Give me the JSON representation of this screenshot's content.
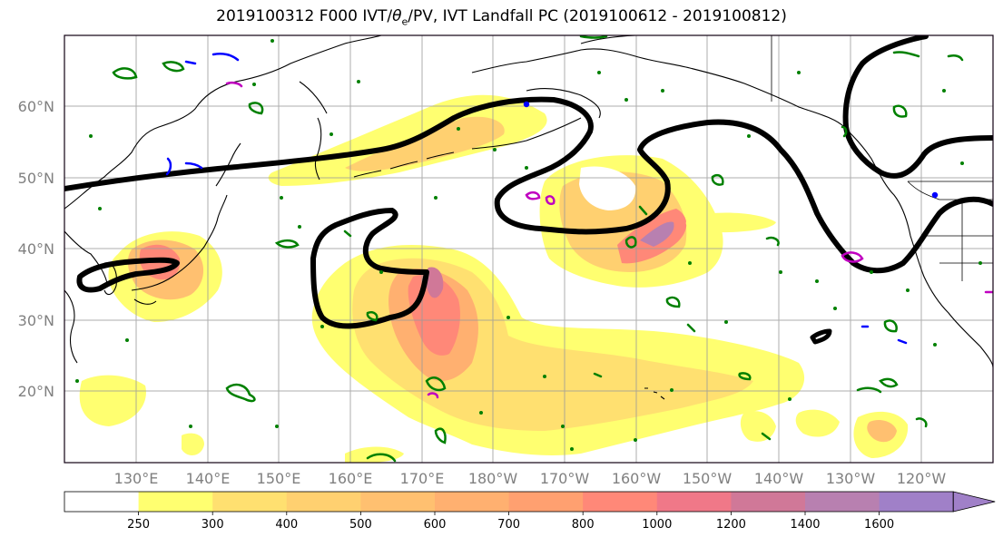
{
  "title_parts": {
    "prefix": "2019100312 F000 IVT/",
    "theta": "θ",
    "sub": "e",
    "suffix": "/PV, IVT Landfall PC (2019100612 - 2019100812)"
  },
  "axes": {
    "lat_labels": [
      "60°N",
      "50°N",
      "40°N",
      "30°N",
      "20°N"
    ],
    "lon_labels": [
      "130°E",
      "140°E",
      "150°E",
      "160°E",
      "170°E",
      "180°W",
      "170°W",
      "160°W",
      "150°W",
      "140°W",
      "130°W",
      "120°W"
    ]
  },
  "colorbar": {
    "levels": [
      "250",
      "300",
      "400",
      "500",
      "600",
      "700",
      "800",
      "1000",
      "1200",
      "1400",
      "1600"
    ],
    "colors": [
      "#ffffff",
      "#ffff70",
      "#ffe070",
      "#ffd070",
      "#ffc070",
      "#ffb070",
      "#ffa070",
      "#ff8878",
      "#f07888",
      "#d07898",
      "#b880b0",
      "#a080c8"
    ]
  },
  "colors": {
    "pv_contour": "#000000",
    "theta_contour": "#008000",
    "neg_contour": "#0000ff",
    "magenta_contour": "#c000c0"
  }
}
